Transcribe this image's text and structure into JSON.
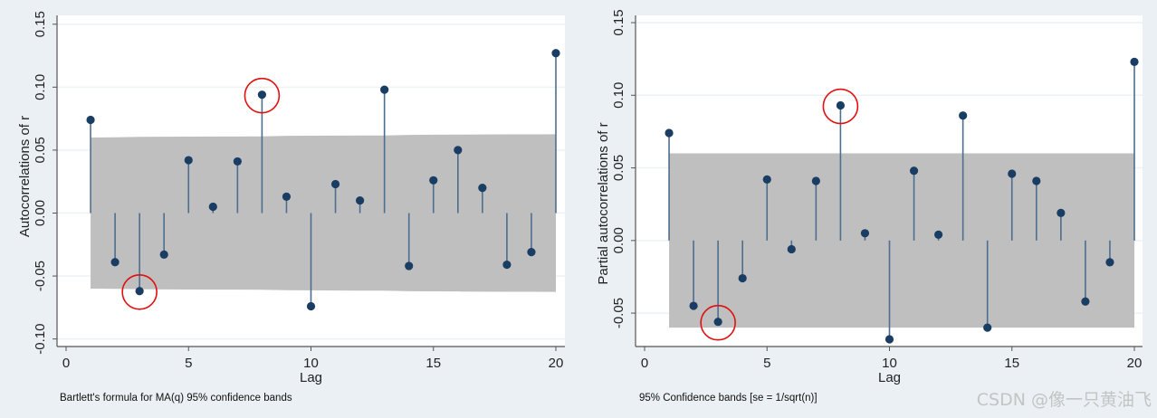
{
  "colors": {
    "band": "#bfbfbf",
    "stem": "#4d6e8e",
    "dot": "#1a3d63",
    "highlight": "#e01010",
    "grid": "#eef2f5"
  },
  "watermark": "CSDN @像一只黄油飞",
  "chart_data": [
    {
      "type": "stem",
      "ylabel": "Autocorrelations of r",
      "xlabel": "Lag",
      "note": "Bartlett's formula for MA(q) 95% confidence bands",
      "xlim": [
        0,
        20
      ],
      "ylim": [
        -0.106,
        0.157
      ],
      "xticks": [
        "0",
        "5",
        "10",
        "15",
        "20"
      ],
      "yticks": [
        "-0.10",
        "-0.05",
        "0.00",
        "0.05",
        "0.10",
        "0.15"
      ],
      "lags": [
        1,
        2,
        3,
        4,
        5,
        6,
        7,
        8,
        9,
        10,
        11,
        12,
        13,
        14,
        15,
        16,
        17,
        18,
        19,
        20
      ],
      "values": [
        0.074,
        -0.039,
        -0.062,
        -0.033,
        0.042,
        0.005,
        0.041,
        0.094,
        0.013,
        -0.074,
        0.023,
        0.01,
        0.098,
        -0.042,
        0.026,
        0.05,
        0.02,
        -0.041,
        -0.031,
        0.127
      ],
      "band": [
        0.06,
        0.0602,
        0.0605,
        0.0606,
        0.0607,
        0.0608,
        0.0608,
        0.0609,
        0.0613,
        0.0614,
        0.0615,
        0.0616,
        0.0616,
        0.0621,
        0.0622,
        0.0623,
        0.0624,
        0.0625,
        0.0625,
        0.0626
      ],
      "highlighted_lags": [
        3,
        8
      ]
    },
    {
      "type": "stem",
      "ylabel": "Partial autocorrelations of r",
      "xlabel": "Lag",
      "note": "95% Confidence bands [se = 1/sqrt(n)]",
      "xlim": [
        0,
        20
      ],
      "ylim": [
        -0.073,
        0.155
      ],
      "xticks": [
        "0",
        "5",
        "10",
        "15",
        "20"
      ],
      "yticks": [
        "-0.05",
        "0.00",
        "0.05",
        "0.10",
        "0.15"
      ],
      "lags": [
        1,
        2,
        3,
        4,
        5,
        6,
        7,
        8,
        9,
        10,
        11,
        12,
        13,
        14,
        15,
        16,
        17,
        18,
        19,
        20
      ],
      "values": [
        0.074,
        -0.045,
        -0.056,
        -0.026,
        0.042,
        -0.006,
        0.041,
        0.093,
        0.005,
        -0.068,
        0.048,
        0.004,
        0.086,
        -0.06,
        0.046,
        0.041,
        0.019,
        -0.042,
        -0.015,
        0.123
      ],
      "band": [
        0.06,
        0.06,
        0.06,
        0.06,
        0.06,
        0.06,
        0.06,
        0.06,
        0.06,
        0.06,
        0.06,
        0.06,
        0.06,
        0.06,
        0.06,
        0.06,
        0.06,
        0.06,
        0.06,
        0.06
      ],
      "highlighted_lags": [
        3,
        8
      ]
    }
  ]
}
